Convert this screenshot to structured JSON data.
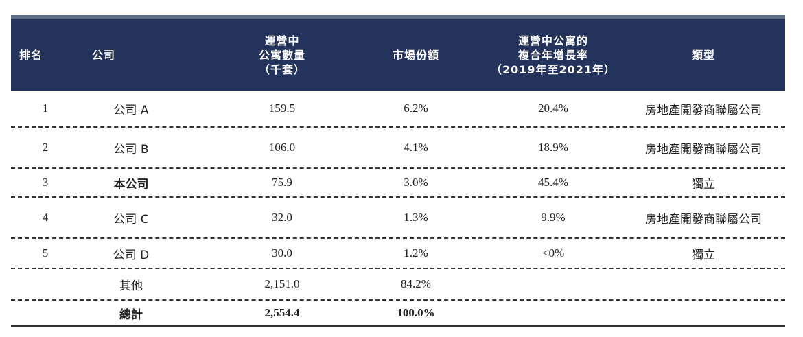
{
  "header": {
    "rank": "排名",
    "company": "公司",
    "units": "運營中\n公寓數量\n（千套）",
    "share": "市場份額",
    "cagr": "運營中公寓的\n複合年增長率\n（2019年至2021年）",
    "type": "類型"
  },
  "rows": [
    {
      "rank": "1",
      "company": "公司 A",
      "units": "159.5",
      "share": "6.2%",
      "cagr": "20.4%",
      "type": "房地產開發商聯屬公司"
    },
    {
      "rank": "2",
      "company": "公司 B",
      "units": "106.0",
      "share": "4.1%",
      "cagr": "18.9%",
      "type": "房地產開發商聯屬公司"
    },
    {
      "rank": "3",
      "company": "本公司",
      "units": "75.9",
      "share": "3.0%",
      "cagr": "45.4%",
      "type": "獨立"
    },
    {
      "rank": "4",
      "company": "公司 C",
      "units": "32.0",
      "share": "1.3%",
      "cagr": "9.9%",
      "type": "房地產開發商聯屬公司"
    },
    {
      "rank": "5",
      "company": "公司 D",
      "units": "30.0",
      "share": "1.2%",
      "cagr": "<0%",
      "type": "獨立"
    },
    {
      "rank": "",
      "company": "其他",
      "units": "2,151.0",
      "share": "84.2%",
      "cagr": "",
      "type": ""
    },
    {
      "rank": "",
      "company": "總計",
      "units": "2,554.4",
      "share": "100.0%",
      "cagr": "",
      "type": ""
    }
  ]
}
